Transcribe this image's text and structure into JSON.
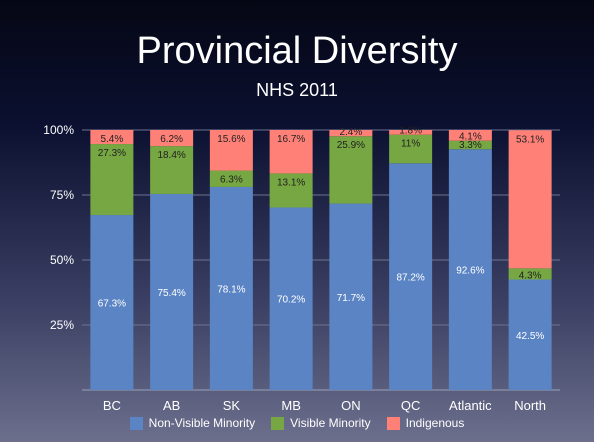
{
  "colors": {
    "Non-Visible Minority": "#5b84c4",
    "Visible Minority": "#76a742",
    "Indigenous": "#ff8077"
  },
  "chart_data": {
    "type": "bar",
    "stacked": true,
    "title": "Provincial Diversity",
    "subtitle": "NHS 2011",
    "categories": [
      "BC",
      "AB",
      "SK",
      "MB",
      "ON",
      "QC",
      "Atlantic",
      "North"
    ],
    "series": [
      {
        "name": "Non-Visible Minority",
        "values": [
          67.3,
          75.4,
          78.1,
          70.2,
          71.7,
          87.2,
          92.6,
          42.5
        ],
        "labels": [
          "67.3%",
          "75.4%",
          "78.1%",
          "70.2%",
          "71.7%",
          "87.2%",
          "92.6%",
          "42.5%"
        ]
      },
      {
        "name": "Visible Minority",
        "values": [
          27.3,
          18.4,
          6.3,
          13.1,
          25.9,
          11,
          3.3,
          4.3
        ],
        "labels": [
          "27.3%",
          "18.4%",
          "6.3%",
          "13.1%",
          "25.9%",
          "11%",
          "3.3%",
          "4.3%"
        ]
      },
      {
        "name": "Indigenous",
        "values": [
          5.4,
          6.2,
          15.6,
          16.7,
          2.4,
          1.8,
          4.1,
          53.1
        ],
        "labels": [
          "5.4%",
          "6.2%",
          "15.6%",
          "16.7%",
          "2.4%",
          "1.8%",
          "4.1%",
          "53.1%"
        ]
      }
    ],
    "yticks": [
      "25%",
      "50%",
      "75%",
      "100%"
    ],
    "ylim": [
      0,
      100
    ],
    "legend": "bottom",
    "grid": true
  }
}
